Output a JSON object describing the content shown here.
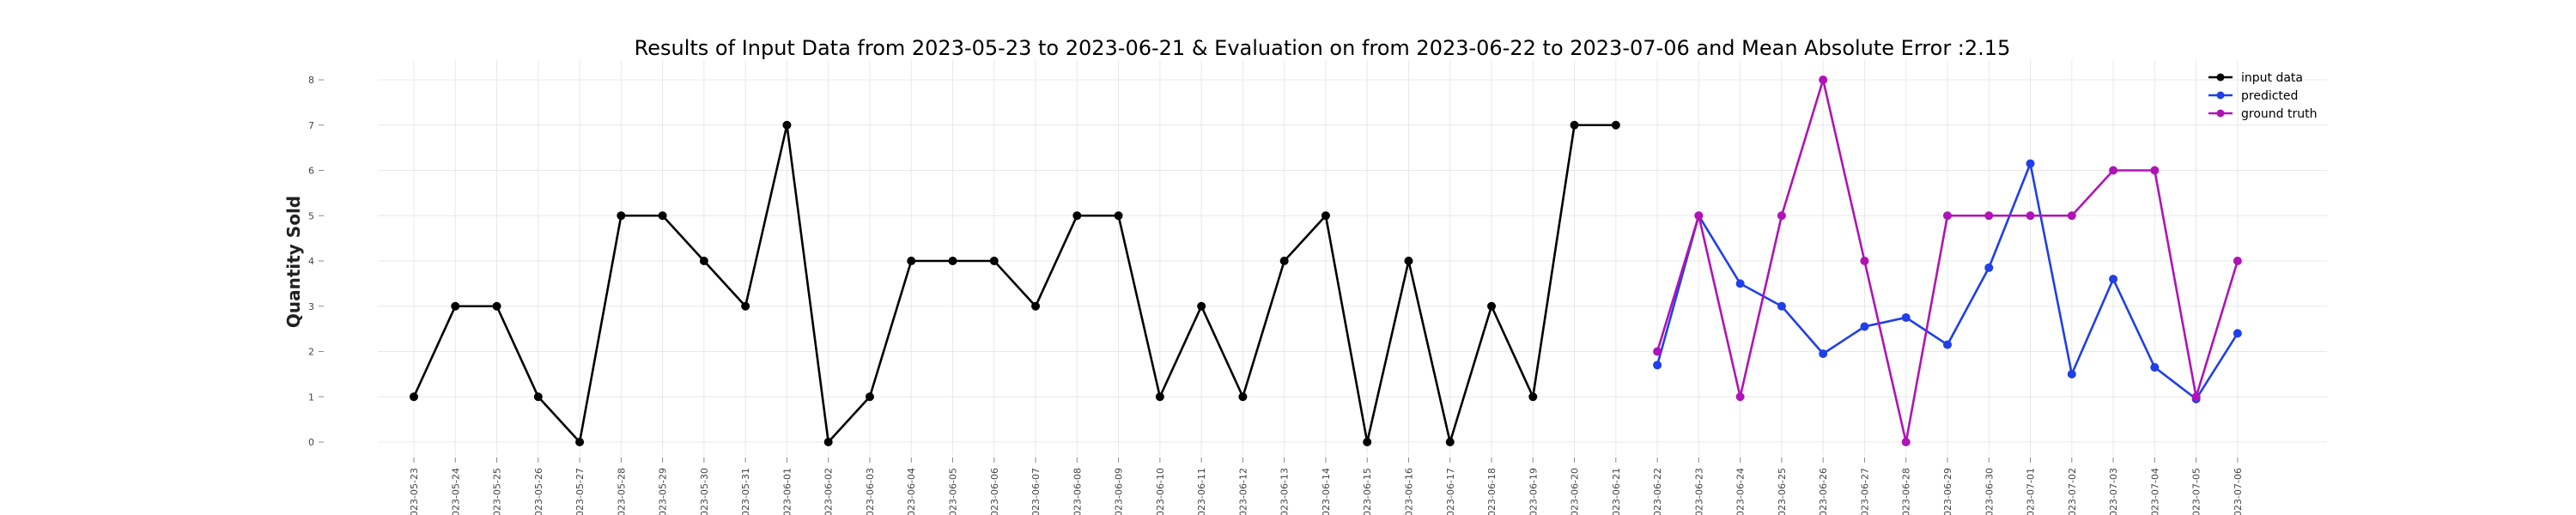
{
  "chart_data": {
    "type": "line",
    "title": "Results of Input Data from 2023-05-23 to 2023-06-21 & Evaluation on from 2023-06-22 to 2023-07-06 and Mean Absolute Error  :2.15",
    "xlabel": "",
    "ylabel": "Quantity Sold",
    "ylim": [
      0,
      8
    ],
    "yticks": [
      0,
      1,
      2,
      3,
      4,
      5,
      6,
      7,
      8
    ],
    "grid": true,
    "legend_position": "top-right",
    "x": [
      "2023-05-23",
      "2023-05-24",
      "2023-05-25",
      "2023-05-26",
      "2023-05-27",
      "2023-05-28",
      "2023-05-29",
      "2023-05-30",
      "2023-05-31",
      "2023-06-01",
      "2023-06-02",
      "2023-06-03",
      "2023-06-04",
      "2023-06-05",
      "2023-06-06",
      "2023-06-07",
      "2023-06-08",
      "2023-06-09",
      "2023-06-10",
      "2023-06-11",
      "2023-06-12",
      "2023-06-13",
      "2023-06-14",
      "2023-06-15",
      "2023-06-16",
      "2023-06-17",
      "2023-06-18",
      "2023-06-19",
      "2023-06-20",
      "2023-06-21",
      "2023-06-22",
      "2023-06-23",
      "2023-06-24",
      "2023-06-25",
      "2023-06-26",
      "2023-06-27",
      "2023-06-28",
      "2023-06-29",
      "2023-06-30",
      "2023-07-01",
      "2023-07-02",
      "2023-07-03",
      "2023-07-04",
      "2023-07-05",
      "2023-07-06"
    ],
    "xtick_labels": [
      "2023-05-23",
      "2023-05-24",
      "2023-05-25",
      "2023-05-26",
      "2023-05-27",
      "2023-05-28",
      "2023-05-29",
      "2023-05-30",
      "2023-05-31",
      "2023-06-01",
      "2023-06-02",
      "2023-06-03",
      "2023-06-04",
      "2023-06-05",
      "2023-06-06",
      "2023-06-07",
      "2023-06-08",
      "2023-06-09",
      "2023-06-10",
      "2023-06-11",
      "2023-06-12",
      "2023-06-13",
      "2023-06-14",
      "2023-06-15",
      "2023-06-16",
      "2023-06-17",
      "2023-06-18",
      "2023-06-19",
      "2023-06-20",
      "2023-06-21",
      "2023-06-22",
      "2023-06-23",
      "2023-06-24",
      "2023-06-25",
      "2023-06-26",
      "2023-06-27",
      "2023-06-28",
      "2023-06-29",
      "2023-06-30",
      "2023-07-01",
      "2023-07-02",
      "2023-07-03",
      "2023-07-04",
      "2023-07-05",
      "2023-07-06"
    ],
    "series": [
      {
        "name": "input data",
        "color": "#000000",
        "x": [
          "2023-05-23",
          "2023-05-24",
          "2023-05-25",
          "2023-05-26",
          "2023-05-27",
          "2023-05-28",
          "2023-05-29",
          "2023-05-30",
          "2023-05-31",
          "2023-06-01",
          "2023-06-02",
          "2023-06-03",
          "2023-06-04",
          "2023-06-05",
          "2023-06-06",
          "2023-06-07",
          "2023-06-08",
          "2023-06-09",
          "2023-06-10",
          "2023-06-11",
          "2023-06-12",
          "2023-06-13",
          "2023-06-14",
          "2023-06-15",
          "2023-06-16",
          "2023-06-17",
          "2023-06-18",
          "2023-06-19",
          "2023-06-20",
          "2023-06-21"
        ],
        "values": [
          1,
          3,
          3,
          1,
          0,
          5,
          5,
          4,
          3,
          7,
          0,
          1,
          4,
          4,
          4,
          3,
          5,
          5,
          1,
          3,
          1,
          4,
          5,
          0,
          4,
          0,
          3,
          1,
          7,
          7
        ]
      },
      {
        "name": "predicted",
        "color": "#1f3fe8",
        "x": [
          "2023-06-22",
          "2023-06-23",
          "2023-06-24",
          "2023-06-25",
          "2023-06-26",
          "2023-06-27",
          "2023-06-28",
          "2023-06-29",
          "2023-06-30",
          "2023-07-01",
          "2023-07-02",
          "2023-07-03",
          "2023-07-04",
          "2023-07-05",
          "2023-07-06"
        ],
        "values": [
          1.7,
          5.0,
          3.5,
          3.0,
          1.95,
          2.55,
          2.75,
          2.15,
          3.85,
          6.15,
          1.5,
          3.6,
          1.65,
          0.95,
          2.4
        ]
      },
      {
        "name": "ground truth",
        "color": "#b012b8",
        "x": [
          "2023-06-22",
          "2023-06-23",
          "2023-06-24",
          "2023-06-25",
          "2023-06-26",
          "2023-06-27",
          "2023-06-28",
          "2023-06-29",
          "2023-06-30",
          "2023-07-01",
          "2023-07-02",
          "2023-07-03",
          "2023-07-04",
          "2023-07-05",
          "2023-07-06"
        ],
        "values": [
          2,
          5,
          1,
          5,
          8,
          4,
          0,
          5,
          5,
          5,
          5,
          6,
          6,
          1,
          4
        ]
      }
    ]
  }
}
